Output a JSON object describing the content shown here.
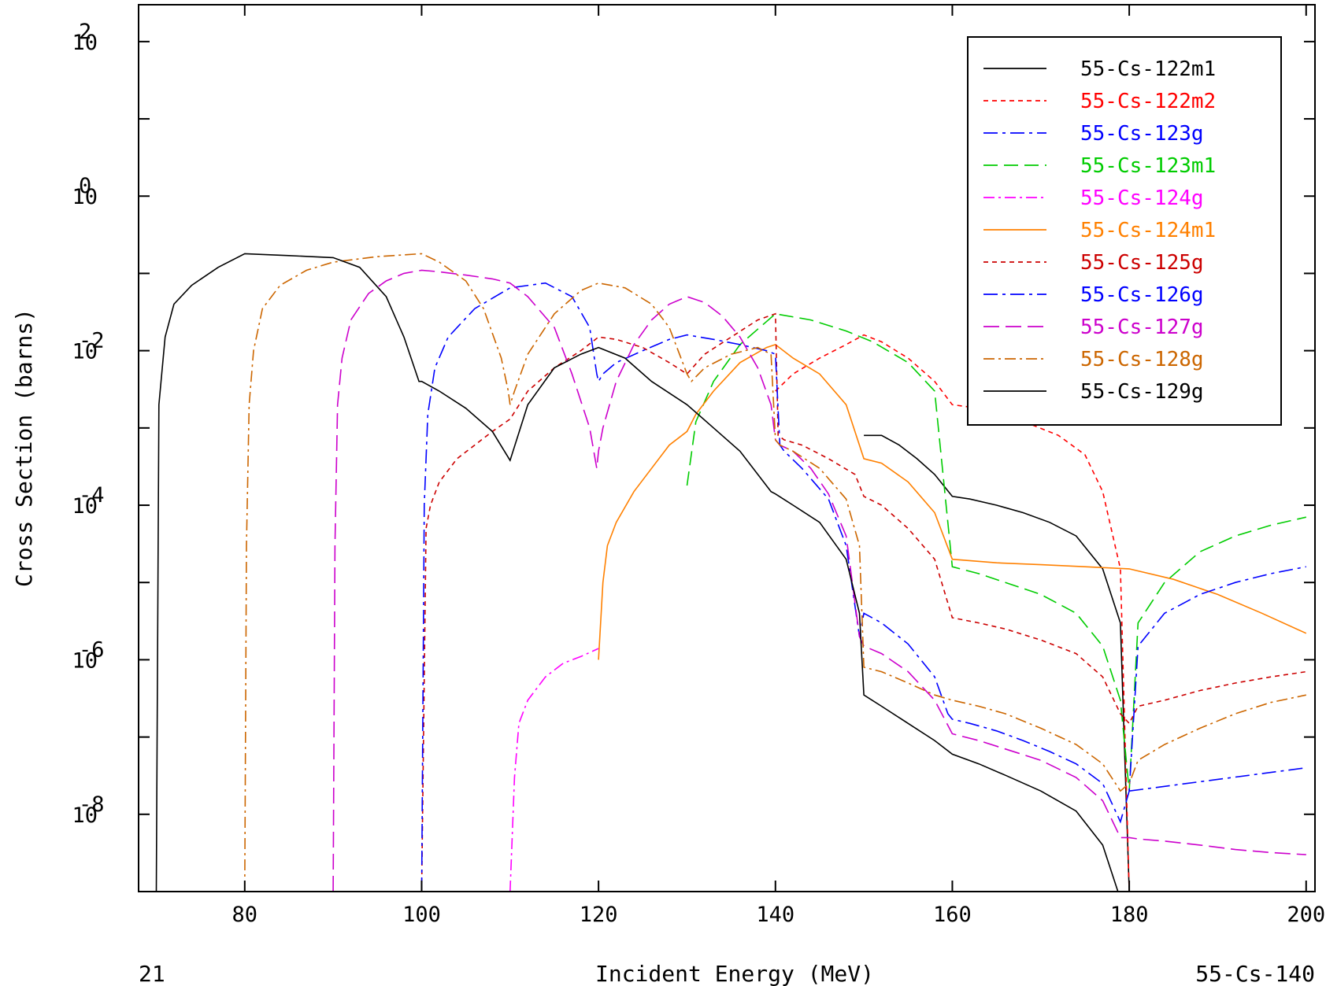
{
  "chart_data": {
    "type": "line",
    "xlabel": "Incident Energy (MeV)",
    "ylabel": "Cross Section (barns)",
    "bottom_left_label": "21",
    "bottom_right_label": "55-Cs-140",
    "x_scale": "linear",
    "y_scale": "log",
    "xlim": [
      68,
      201
    ],
    "ylim": [
      1e-09,
      300
    ],
    "x_ticks": [
      80,
      100,
      120,
      140,
      160,
      180,
      200
    ],
    "x_tick_labels": [
      "80",
      "100",
      "120",
      "140",
      "160",
      "180",
      "200"
    ],
    "y_major_ticks": [
      {
        "value": 1e-08,
        "base": "10",
        "exp": "-8"
      },
      {
        "value": 1e-06,
        "base": "10",
        "exp": "-6"
      },
      {
        "value": 0.0001,
        "base": "10",
        "exp": "-4"
      },
      {
        "value": 0.01,
        "base": "10",
        "exp": "-2"
      },
      {
        "value": 1,
        "base": "10",
        "exp": "0"
      },
      {
        "value": 100,
        "base": "10",
        "exp": "2"
      }
    ],
    "grid": false,
    "legend_position": "top-right",
    "series": [
      {
        "name": "55-Cs-122m1",
        "color": "#000000",
        "dash": "solid",
        "x": [
          150,
          152,
          154,
          156,
          158,
          160,
          162,
          165,
          168,
          171,
          174,
          177,
          179,
          180
        ],
        "y": [
          0.0008,
          0.0008,
          0.0006,
          0.0004,
          0.00025,
          0.00013,
          0.00012,
          0.0001,
          8e-05,
          6e-05,
          4e-05,
          1.5e-05,
          3e-06,
          1e-09
        ]
      },
      {
        "name": "55-Cs-122m2",
        "color": "#ff0000",
        "dash": "6,5",
        "x": [
          140,
          142,
          145,
          148,
          150,
          152,
          155,
          158,
          160,
          163,
          166,
          169,
          172,
          175,
          177,
          179,
          180
        ],
        "y": [
          0.003,
          0.005,
          0.008,
          0.012,
          0.016,
          0.013,
          0.008,
          0.004,
          0.002,
          0.0018,
          0.0015,
          0.0011,
          0.0008,
          0.00045,
          0.00015,
          1.5e-05,
          1e-09
        ]
      },
      {
        "name": "55-Cs-123g",
        "color": "#0000ff",
        "dash": "18,6,4,6",
        "x": [
          180,
          200
        ],
        "y": [
          2e-08,
          4e-08
        ]
      },
      {
        "name": "55-Cs-123m1",
        "color": "#00cc00",
        "dash": "18,8",
        "x": [
          130,
          131,
          133,
          136,
          140,
          144,
          148,
          151,
          155,
          158,
          160,
          163,
          166,
          170,
          174,
          177,
          179,
          180,
          181,
          184,
          188,
          192,
          196,
          200
        ],
        "y": [
          0.00018,
          0.0012,
          0.004,
          0.012,
          0.03,
          0.025,
          0.018,
          0.013,
          0.007,
          0.003,
          1.6e-05,
          1.3e-05,
          1e-05,
          7e-06,
          4e-06,
          1.5e-06,
          3e-07,
          2e-08,
          3e-06,
          1e-05,
          2.5e-05,
          4e-05,
          5.5e-05,
          7e-05
        ]
      },
      {
        "name": "55-Cs-124g",
        "color": "#ff00ff",
        "dash": "14,5,3,5",
        "x": [
          110,
          110.5,
          111,
          112,
          114,
          116,
          118,
          120
        ],
        "y": [
          1e-09,
          3e-08,
          1.5e-07,
          3e-07,
          6e-07,
          9e-07,
          1.1e-06,
          1.4e-06
        ]
      },
      {
        "name": "55-Cs-124m1",
        "color": "#ff8000",
        "dash": "solid",
        "x": [
          120,
          120.5,
          121,
          122,
          124,
          126,
          128,
          130,
          131,
          133,
          136,
          139,
          140,
          142,
          145,
          148,
          150,
          152,
          155,
          158,
          160,
          165,
          170,
          175,
          180,
          185,
          190,
          195,
          200
        ],
        "y": [
          1e-06,
          1e-05,
          3e-05,
          6e-05,
          0.00015,
          0.0003,
          0.0006,
          0.0009,
          0.0015,
          0.003,
          0.007,
          0.011,
          0.012,
          0.008,
          0.005,
          0.002,
          0.0004,
          0.00035,
          0.0002,
          8e-05,
          2e-05,
          1.8e-05,
          1.7e-05,
          1.6e-05,
          1.5e-05,
          1.1e-05,
          7e-06,
          4e-06,
          2.2e-06
        ]
      },
      {
        "name": "55-Cs-125g",
        "color": "#cc0000",
        "dash": "6,5",
        "x": [
          100,
          100.5,
          101,
          102,
          104,
          106,
          108,
          110,
          112,
          115,
          118,
          120,
          122,
          125,
          128,
          130,
          132,
          135,
          138,
          140,
          140.3,
          141,
          143,
          146,
          149,
          150,
          152,
          155,
          158,
          160,
          163,
          166,
          170,
          174,
          177,
          179,
          180,
          181,
          184,
          188,
          192,
          196,
          200
        ],
        "y": [
          1e-09,
          5e-05,
          0.0001,
          0.0002,
          0.0004,
          0.0006,
          0.0009,
          0.0013,
          0.003,
          0.006,
          0.01,
          0.015,
          0.014,
          0.011,
          0.007,
          0.005,
          0.009,
          0.015,
          0.025,
          0.03,
          0.0008,
          0.0007,
          0.0006,
          0.0004,
          0.00025,
          0.00013,
          0.0001,
          5e-05,
          2e-05,
          3.5e-06,
          3e-06,
          2.5e-06,
          1.8e-06,
          1.2e-06,
          6e-07,
          2e-07,
          1.5e-07,
          2.5e-07,
          3e-07,
          4e-07,
          5e-07,
          6e-07,
          7e-07
        ]
      },
      {
        "name": "55-Cs-126g",
        "color": "#0000ff",
        "dash": "18,6,4,6",
        "x": [
          100,
          100.3,
          100.7,
          101.5,
          103,
          106,
          110,
          114,
          117,
          119,
          119.8,
          120,
          120.5,
          122,
          125,
          128,
          130,
          133,
          136,
          139,
          140,
          140.5,
          141,
          143,
          146,
          148,
          149.5,
          150,
          152,
          155,
          158,
          159.5,
          160,
          162,
          165,
          168,
          171,
          174,
          177,
          179,
          180,
          181,
          184,
          188,
          192,
          196,
          200
        ],
        "y": [
          1e-09,
          0.0001,
          0.0015,
          0.006,
          0.015,
          0.035,
          0.065,
          0.075,
          0.05,
          0.02,
          0.005,
          0.004,
          0.005,
          0.007,
          0.01,
          0.014,
          0.016,
          0.014,
          0.012,
          0.01,
          0.009,
          0.0006,
          0.0005,
          0.0003,
          0.00012,
          3e-05,
          2e-06,
          4e-06,
          3e-06,
          1.6e-06,
          6e-07,
          2e-07,
          1.7e-07,
          1.5e-07,
          1.2e-07,
          9e-08,
          6.5e-08,
          4.5e-08,
          2.5e-08,
          8e-09,
          2e-08,
          1.5e-06,
          4e-06,
          7e-06,
          1e-05,
          1.3e-05,
          1.6e-05
        ]
      },
      {
        "name": "55-Cs-127g",
        "color": "#cc00cc",
        "dash": "20,8",
        "x": [
          90,
          90.2,
          90.5,
          91,
          92,
          94,
          96,
          98,
          100,
          102,
          105,
          108,
          110,
          112,
          115,
          117,
          119,
          119.8,
          120,
          120.5,
          122,
          124,
          126,
          128,
          130,
          132,
          134,
          136,
          138,
          139.5,
          140,
          140.5,
          142,
          144,
          146,
          148,
          149.5,
          150,
          152,
          155,
          158,
          160,
          163,
          166,
          170,
          174,
          177,
          179,
          180,
          181,
          184,
          188,
          192,
          196,
          200
        ],
        "y": [
          1e-09,
          3e-05,
          0.002,
          0.008,
          0.025,
          0.055,
          0.08,
          0.1,
          0.11,
          0.105,
          0.095,
          0.085,
          0.075,
          0.05,
          0.02,
          0.005,
          0.001,
          0.0003,
          0.0005,
          0.001,
          0.004,
          0.012,
          0.025,
          0.04,
          0.05,
          0.042,
          0.028,
          0.015,
          0.006,
          0.002,
          0.0007,
          0.0006,
          0.0005,
          0.0003,
          0.00014,
          4e-05,
          2e-06,
          1.5e-06,
          1.2e-06,
          7e-07,
          3e-07,
          1.1e-07,
          9e-08,
          7e-08,
          5e-08,
          3e-08,
          1.5e-08,
          5e-09,
          5e-09,
          4.8e-09,
          4.5e-09,
          4e-09,
          3.5e-09,
          3.2e-09,
          3e-09
        ]
      },
      {
        "name": "55-Cs-128g",
        "color": "#cc6600",
        "dash": "14,5,3,5",
        "x": [
          80,
          80.2,
          80.5,
          81,
          82,
          84,
          87,
          90,
          95,
          100,
          102,
          105,
          107,
          109,
          109.8,
          110,
          110.5,
          112,
          115,
          118,
          120,
          123,
          126,
          128,
          130,
          130.5,
          132,
          135,
          138,
          139.5,
          140,
          140.5,
          142,
          145,
          148,
          149.5,
          150,
          152,
          155,
          158,
          160,
          163,
          166,
          170,
          174,
          177,
          179,
          180,
          181,
          184,
          188,
          192,
          196,
          200
        ],
        "y": [
          1e-09,
          3e-05,
          0.002,
          0.01,
          0.035,
          0.07,
          0.11,
          0.14,
          0.165,
          0.18,
          0.14,
          0.08,
          0.035,
          0.008,
          0.003,
          0.002,
          0.003,
          0.009,
          0.03,
          0.06,
          0.075,
          0.065,
          0.04,
          0.02,
          0.005,
          0.004,
          0.006,
          0.009,
          0.011,
          0.009,
          0.0007,
          0.0006,
          0.0005,
          0.0003,
          0.00012,
          3e-05,
          8e-07,
          7e-07,
          5e-07,
          3.5e-07,
          3e-07,
          2.5e-07,
          2e-07,
          1.3e-07,
          8e-08,
          4.5e-08,
          2e-08,
          2.5e-08,
          5e-08,
          8e-08,
          1.3e-07,
          2e-07,
          2.8e-07,
          3.5e-07
        ]
      },
      {
        "name": "55-Cs-129g",
        "color": "#000000",
        "dash": "solid",
        "x": [
          70,
          70.3,
          71,
          72,
          74,
          77,
          80,
          85,
          90,
          93,
          96,
          98,
          99.7,
          100,
          102,
          105,
          108,
          110,
          112,
          115,
          118,
          120,
          123,
          126,
          130,
          133,
          136,
          139.5,
          140,
          142,
          145,
          148,
          149.5,
          150,
          152,
          155,
          158,
          160,
          163,
          166,
          170,
          174,
          177,
          179,
          180
        ],
        "y": [
          1e-09,
          0.002,
          0.015,
          0.04,
          0.07,
          0.12,
          0.18,
          0.17,
          0.16,
          0.12,
          0.05,
          0.015,
          0.004,
          0.004,
          0.003,
          0.0018,
          0.0009,
          0.00038,
          0.002,
          0.006,
          0.009,
          0.011,
          0.008,
          0.004,
          0.002,
          0.001,
          0.0005,
          0.00015,
          0.00014,
          0.0001,
          6e-05,
          2e-05,
          4e-06,
          3.5e-07,
          2.5e-07,
          1.5e-07,
          9e-08,
          6e-08,
          4.5e-08,
          3.2e-08,
          2e-08,
          1.1e-08,
          4e-09,
          8e-10,
          1e-09
        ]
      }
    ]
  }
}
